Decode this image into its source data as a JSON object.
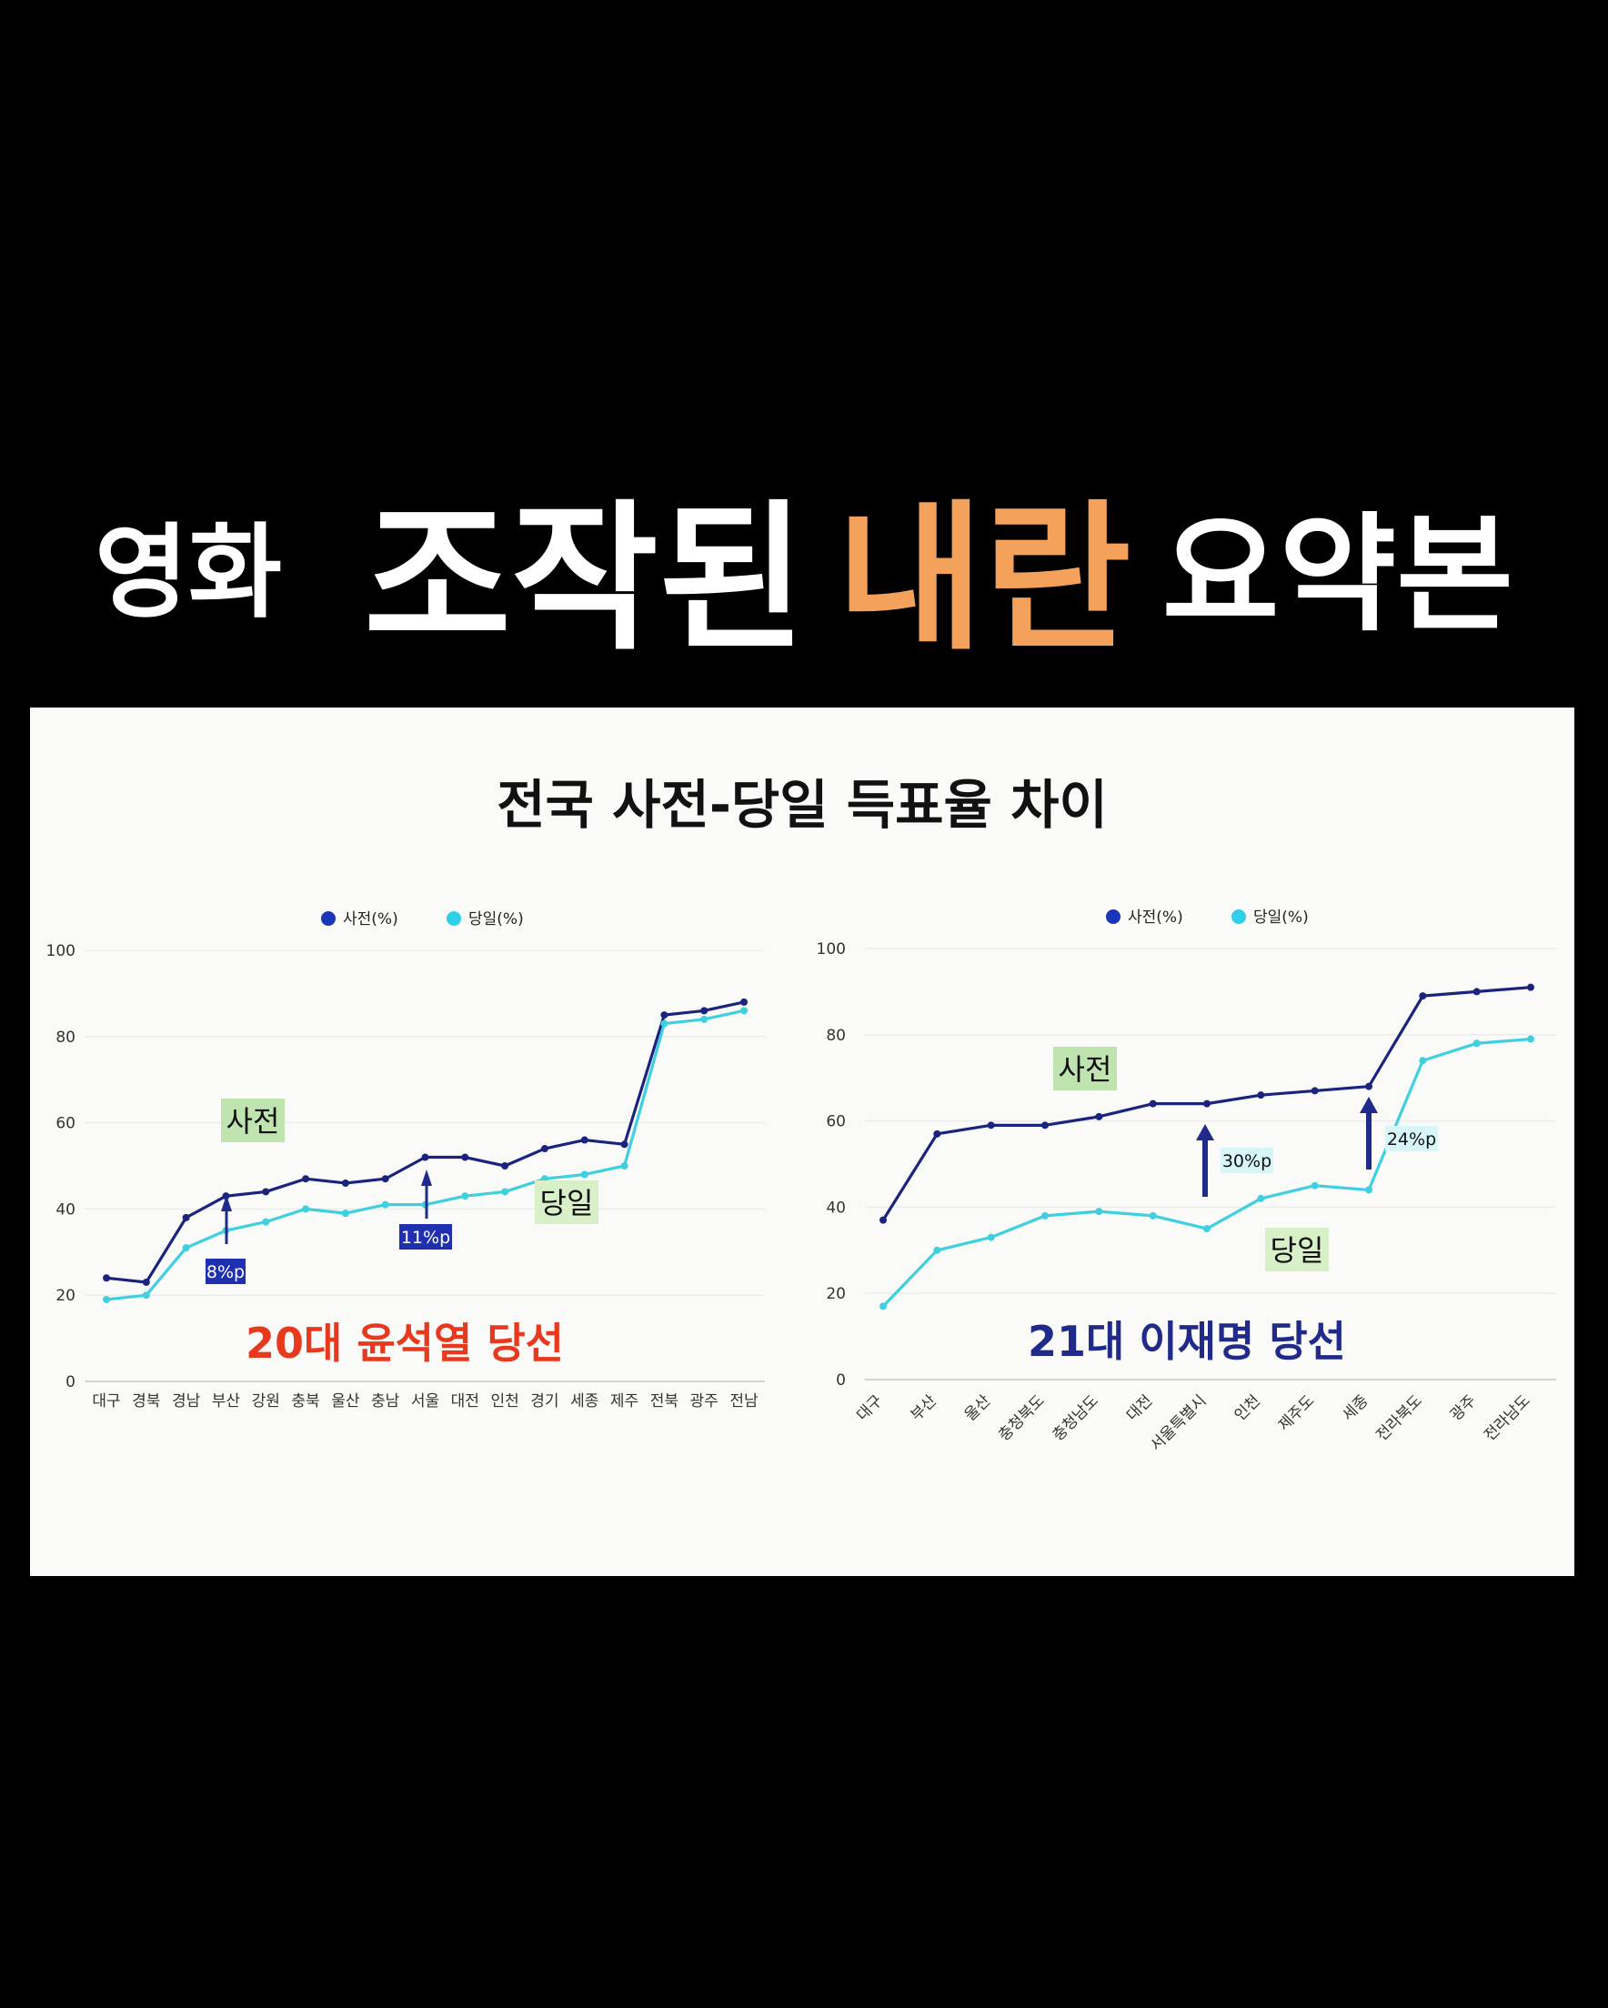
{
  "headline": {
    "word1": "영화",
    "word2": "조작된",
    "word3": "내란",
    "word4": "요약본",
    "accent_color": "#f4a15c"
  },
  "slide_title": "전국 사전-당일 득표율 차이",
  "colors": {
    "early": "#1a237e",
    "day": "#3fd0e0",
    "red": "#e8381e",
    "navy": "#1f2a8a"
  },
  "chart_data": [
    {
      "type": "line",
      "legend": [
        "사전(%)",
        "당일(%)"
      ],
      "ylim": [
        0,
        100
      ],
      "yticks": [
        "0",
        "20",
        "40",
        "60",
        "80",
        "100"
      ],
      "categories": [
        "대구",
        "경북",
        "경남",
        "부산",
        "강원",
        "충북",
        "울산",
        "충남",
        "서울",
        "대전",
        "인천",
        "경기",
        "세종",
        "제주",
        "전북",
        "광주",
        "전남"
      ],
      "series": [
        {
          "name": "사전(%)",
          "values": [
            24,
            23,
            38,
            43,
            44,
            47,
            46,
            47,
            52,
            52,
            50,
            54,
            56,
            55,
            85,
            86,
            88
          ]
        },
        {
          "name": "당일(%)",
          "values": [
            19,
            20,
            31,
            35,
            37,
            40,
            39,
            41,
            41,
            43,
            44,
            47,
            48,
            50,
            83,
            84,
            86
          ]
        }
      ],
      "annotations": {
        "early_label": "사전",
        "day_label": "당일",
        "gap1": "8%p",
        "gap2": "11%p",
        "caption": "20대 윤석열 당선"
      }
    },
    {
      "type": "line",
      "legend": [
        "사전(%)",
        "당일(%)"
      ],
      "ylim": [
        0,
        100
      ],
      "yticks": [
        "0",
        "20",
        "40",
        "60",
        "80",
        "100"
      ],
      "categories": [
        "대구",
        "부산",
        "울산",
        "충청북도",
        "충청남도",
        "대전",
        "서울특별시",
        "인천",
        "제주도",
        "세종",
        "전라북도",
        "광주",
        "전라남도"
      ],
      "series": [
        {
          "name": "사전(%)",
          "values": [
            37,
            57,
            59,
            59,
            61,
            64,
            64,
            66,
            67,
            68,
            89,
            90,
            91
          ]
        },
        {
          "name": "당일(%)",
          "values": [
            17,
            30,
            33,
            38,
            39,
            38,
            35,
            42,
            45,
            44,
            74,
            78,
            79
          ]
        }
      ],
      "annotations": {
        "early_label": "사전",
        "day_label": "당일",
        "gap1": "30%p",
        "gap2": "24%p",
        "caption": "21대 이재명 당선"
      }
    }
  ]
}
